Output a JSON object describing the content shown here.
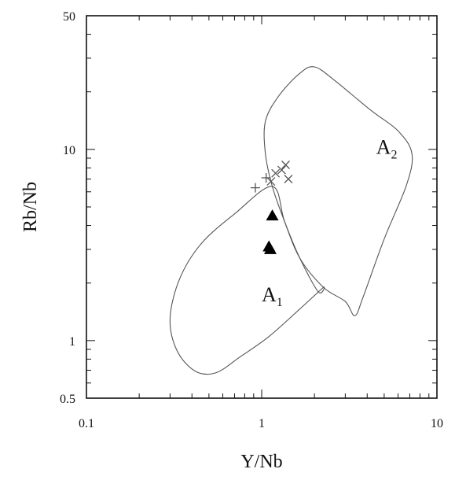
{
  "chart_data": {
    "type": "scatter",
    "xlabel": "Y/Nb",
    "ylabel": "Rb/Nb",
    "xscale": "log",
    "yscale": "log",
    "xlim": [
      0.1,
      10
    ],
    "ylim": [
      0.5,
      50
    ],
    "x_ticks": [
      {
        "value": 0.1,
        "label": "0.1"
      },
      {
        "value": 1,
        "label": "1"
      },
      {
        "value": 10,
        "label": "10"
      }
    ],
    "y_ticks": [
      {
        "value": 0.5,
        "label": "0.5"
      },
      {
        "value": 1,
        "label": "1"
      },
      {
        "value": 10,
        "label": "10"
      },
      {
        "value": 50,
        "label": "50"
      }
    ],
    "fields": [
      {
        "label": "A",
        "subscript": "1",
        "label_at": [
          1.0,
          1.6
        ],
        "outline": [
          [
            0.3,
            1.3
          ],
          [
            0.34,
            2.1
          ],
          [
            0.45,
            3.2
          ],
          [
            0.7,
            4.6
          ],
          [
            1.15,
            6.4
          ],
          [
            1.35,
            4.2
          ],
          [
            1.65,
            2.7
          ],
          [
            2.1,
            1.8
          ],
          [
            2.25,
            1.9
          ],
          [
            1.7,
            1.5
          ],
          [
            1.1,
            1.05
          ],
          [
            0.75,
            0.82
          ],
          [
            0.55,
            0.68
          ],
          [
            0.42,
            0.69
          ],
          [
            0.33,
            0.88
          ],
          [
            0.3,
            1.3
          ]
        ]
      },
      {
        "label": "A",
        "subscript": "2",
        "label_at": [
          4.5,
          9.5
        ],
        "outline": [
          [
            1.15,
            6.4
          ],
          [
            1.05,
            9.5
          ],
          [
            1.05,
            14
          ],
          [
            1.25,
            19
          ],
          [
            1.65,
            25
          ],
          [
            2.0,
            27
          ],
          [
            2.6,
            23
          ],
          [
            4.2,
            16
          ],
          [
            6.0,
            12.5
          ],
          [
            7.2,
            9.5
          ],
          [
            6.7,
            6.5
          ],
          [
            5.0,
            3.4
          ],
          [
            3.8,
            1.7
          ],
          [
            3.4,
            1.35
          ],
          [
            3.0,
            1.6
          ],
          [
            2.25,
            1.9
          ],
          [
            1.65,
            2.7
          ],
          [
            1.35,
            4.2
          ],
          [
            1.15,
            6.4
          ]
        ]
      }
    ],
    "series": [
      {
        "marker": "plus",
        "points": [
          [
            0.92,
            6.3
          ],
          [
            1.06,
            7.1
          ]
        ]
      },
      {
        "marker": "x",
        "points": [
          [
            1.13,
            6.8
          ],
          [
            1.2,
            7.5
          ],
          [
            1.3,
            7.8
          ],
          [
            1.37,
            8.3
          ],
          [
            1.42,
            7.0
          ]
        ]
      },
      {
        "marker": "filled-triangle",
        "points": [
          [
            1.15,
            4.5
          ],
          [
            1.1,
            3.1
          ],
          [
            1.12,
            3.0
          ]
        ]
      }
    ]
  }
}
